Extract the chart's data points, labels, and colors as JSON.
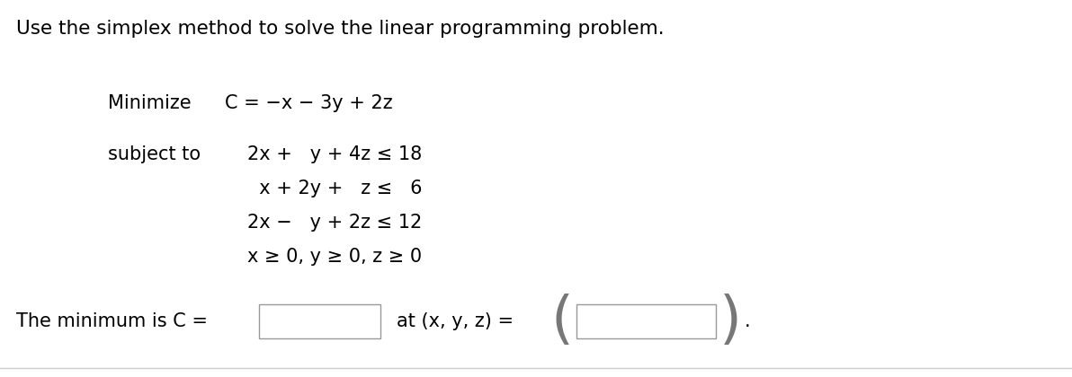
{
  "title": "Use the simplex method to solve the linear programming problem.",
  "title_fontsize": 15.5,
  "minimize_label": "Minimize",
  "minimize_eq": "C = −x − 3y + 2z",
  "subject_label": "subject to",
  "constraints": [
    "2x +   y + 4z ≤ 18",
    "  x + 2y +   z ≤   6",
    "2x −   y + 2z ≤ 12",
    "x ≥ 0, y ≥ 0, z ≥ 0"
  ],
  "bottom_text1": "The minimum is C =",
  "bottom_text2": "at (x, y, z) =",
  "body_fontsize": 15,
  "background_color": "#ffffff",
  "text_color": "#000000",
  "box_edge_color": "#999999",
  "line_color": "#cccccc",
  "paren_color": "#777777"
}
